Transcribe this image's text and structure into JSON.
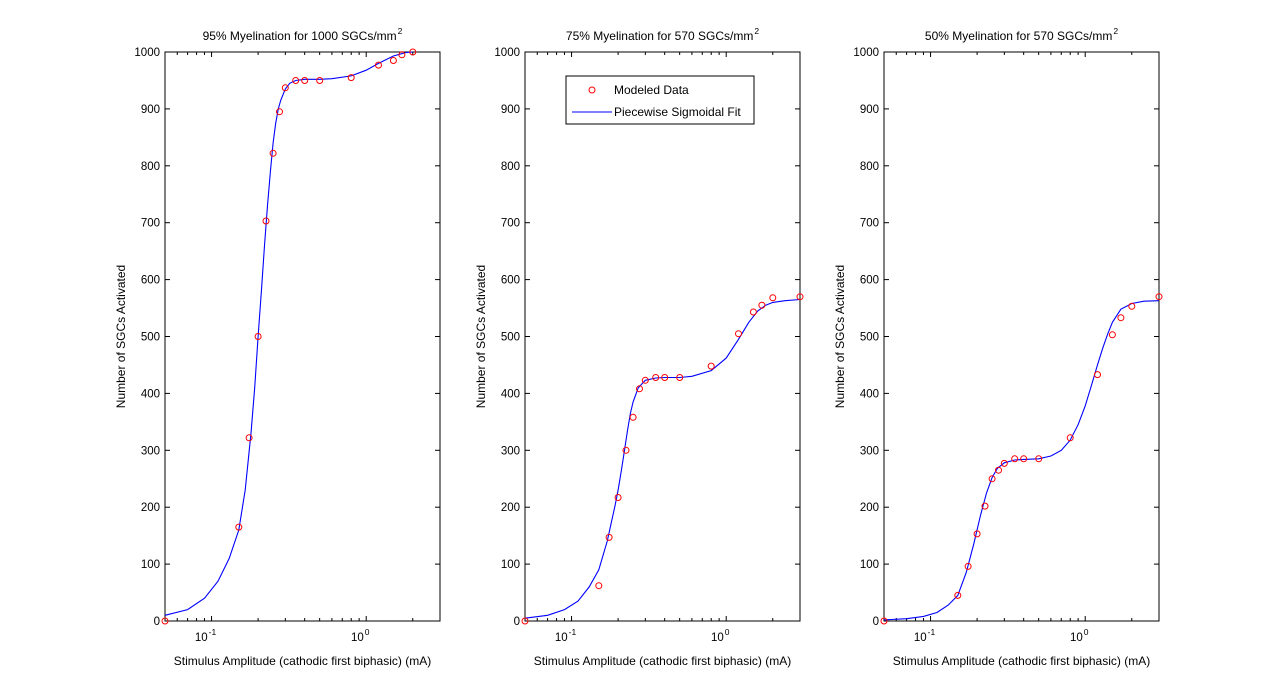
{
  "chart_data": [
    {
      "type": "line",
      "title": "95% Myelination for 1000 SGCs/mm",
      "title_superscript": "2",
      "xlabel": "Stimulus Amplitude (cathodic first biphasic) (mA)",
      "ylabel": "Number of SGCs Activated",
      "xscale": "log",
      "xlim": [
        0.05,
        3
      ],
      "ylim": [
        0,
        1000
      ],
      "yticks": [
        "0",
        "100",
        "200",
        "300",
        "400",
        "500",
        "600",
        "700",
        "800",
        "900",
        "1000"
      ],
      "xticks": [
        {
          "base": "10",
          "exp": "-1"
        },
        {
          "base": "10",
          "exp": "0"
        }
      ],
      "grid": false,
      "series": [
        {
          "name": "Modeled Data",
          "kind": "scatter",
          "marker": "circle",
          "color": "#ff0000",
          "x": [
            0.05,
            0.15,
            0.175,
            0.2,
            0.225,
            0.25,
            0.275,
            0.3,
            0.35,
            0.4,
            0.5,
            0.8,
            1.2,
            1.5,
            1.7,
            2.0
          ],
          "y": [
            0,
            165,
            322,
            500,
            703,
            822,
            895,
            937,
            950,
            950,
            950,
            955,
            977,
            985,
            995,
            1000
          ]
        },
        {
          "name": "Piecewise Sigmoidal Fit",
          "kind": "line",
          "color": "#0000ff",
          "x": [
            0.05,
            0.07,
            0.09,
            0.11,
            0.13,
            0.15,
            0.165,
            0.18,
            0.19,
            0.2,
            0.21,
            0.22,
            0.23,
            0.24,
            0.25,
            0.26,
            0.27,
            0.28,
            0.3,
            0.32,
            0.35,
            0.4,
            0.5,
            0.6,
            0.8,
            1.0,
            1.2,
            1.5,
            1.8,
            2.0
          ],
          "y": [
            10,
            20,
            40,
            70,
            110,
            160,
            230,
            330,
            410,
            500,
            580,
            660,
            730,
            790,
            840,
            875,
            900,
            915,
            935,
            945,
            950,
            952,
            952,
            953,
            958,
            968,
            980,
            993,
            999,
            1000
          ]
        }
      ]
    },
    {
      "type": "line",
      "title": "75% Myelination for 570 SGCs/mm",
      "title_superscript": "2",
      "xlabel": "Stimulus Amplitude (cathodic first biphasic) (mA)",
      "ylabel": "Number of SGCs Activated",
      "xscale": "log",
      "xlim": [
        0.05,
        3
      ],
      "ylim": [
        0,
        1000
      ],
      "yticks": [
        "0",
        "100",
        "200",
        "300",
        "400",
        "500",
        "600",
        "700",
        "800",
        "900",
        "1000"
      ],
      "xticks": [
        {
          "base": "10",
          "exp": "-1"
        },
        {
          "base": "10",
          "exp": "0"
        }
      ],
      "grid": false,
      "legend": {
        "location": "top",
        "entries": [
          {
            "label": "Modeled Data",
            "kind": "marker",
            "color": "#ff0000"
          },
          {
            "label": "Piecewise Sigmoidal Fit",
            "kind": "line",
            "color": "#0000ff"
          }
        ]
      },
      "series": [
        {
          "name": "Modeled Data",
          "kind": "scatter",
          "marker": "circle",
          "color": "#ff0000",
          "x": [
            0.05,
            0.15,
            0.175,
            0.2,
            0.225,
            0.25,
            0.275,
            0.3,
            0.35,
            0.4,
            0.5,
            0.8,
            1.2,
            1.5,
            1.7,
            2.0,
            3.0
          ],
          "y": [
            0,
            62,
            147,
            217,
            300,
            358,
            408,
            423,
            428,
            428,
            428,
            448,
            505,
            543,
            555,
            568,
            570
          ]
        },
        {
          "name": "Piecewise Sigmoidal Fit",
          "kind": "line",
          "color": "#0000ff",
          "x": [
            0.05,
            0.07,
            0.09,
            0.11,
            0.13,
            0.15,
            0.17,
            0.19,
            0.2,
            0.21,
            0.22,
            0.23,
            0.24,
            0.25,
            0.27,
            0.3,
            0.35,
            0.4,
            0.5,
            0.6,
            0.8,
            1.0,
            1.2,
            1.4,
            1.6,
            1.8,
            2.0,
            2.4,
            3.0
          ],
          "y": [
            5,
            10,
            20,
            35,
            60,
            90,
            140,
            200,
            230,
            265,
            300,
            335,
            365,
            385,
            410,
            423,
            427,
            428,
            428,
            430,
            440,
            462,
            495,
            525,
            545,
            555,
            560,
            563,
            565
          ]
        }
      ]
    },
    {
      "type": "line",
      "title": "50% Myelination for 570 SGCs/mm",
      "title_superscript": "2",
      "xlabel": "Stimulus Amplitude (cathodic first biphasic) (mA)",
      "ylabel": "Number of SGCs Activated",
      "xscale": "log",
      "xlim": [
        0.05,
        3
      ],
      "ylim": [
        0,
        1000
      ],
      "yticks": [
        "0",
        "100",
        "200",
        "300",
        "400",
        "500",
        "600",
        "700",
        "800",
        "900",
        "1000"
      ],
      "xticks": [
        {
          "base": "10",
          "exp": "-1"
        },
        {
          "base": "10",
          "exp": "0"
        }
      ],
      "grid": false,
      "series": [
        {
          "name": "Modeled Data",
          "kind": "scatter",
          "marker": "circle",
          "color": "#ff0000",
          "x": [
            0.05,
            0.15,
            0.175,
            0.2,
            0.225,
            0.25,
            0.275,
            0.3,
            0.35,
            0.4,
            0.5,
            0.8,
            1.2,
            1.5,
            1.7,
            2.0,
            3.0
          ],
          "y": [
            0,
            45,
            96,
            153,
            202,
            250,
            265,
            277,
            285,
            285,
            285,
            322,
            433,
            503,
            533,
            553,
            570
          ]
        },
        {
          "name": "Piecewise Sigmoidal Fit",
          "kind": "line",
          "color": "#0000ff",
          "x": [
            0.05,
            0.07,
            0.09,
            0.11,
            0.13,
            0.15,
            0.17,
            0.19,
            0.21,
            0.23,
            0.25,
            0.27,
            0.3,
            0.35,
            0.4,
            0.5,
            0.6,
            0.7,
            0.8,
            0.9,
            1.0,
            1.1,
            1.2,
            1.3,
            1.4,
            1.5,
            1.7,
            2.0,
            2.4,
            3.0
          ],
          "y": [
            2,
            4,
            8,
            15,
            28,
            45,
            85,
            135,
            185,
            225,
            252,
            268,
            278,
            283,
            284,
            285,
            290,
            300,
            318,
            345,
            378,
            415,
            450,
            480,
            505,
            525,
            548,
            558,
            562,
            563
          ]
        }
      ]
    }
  ]
}
